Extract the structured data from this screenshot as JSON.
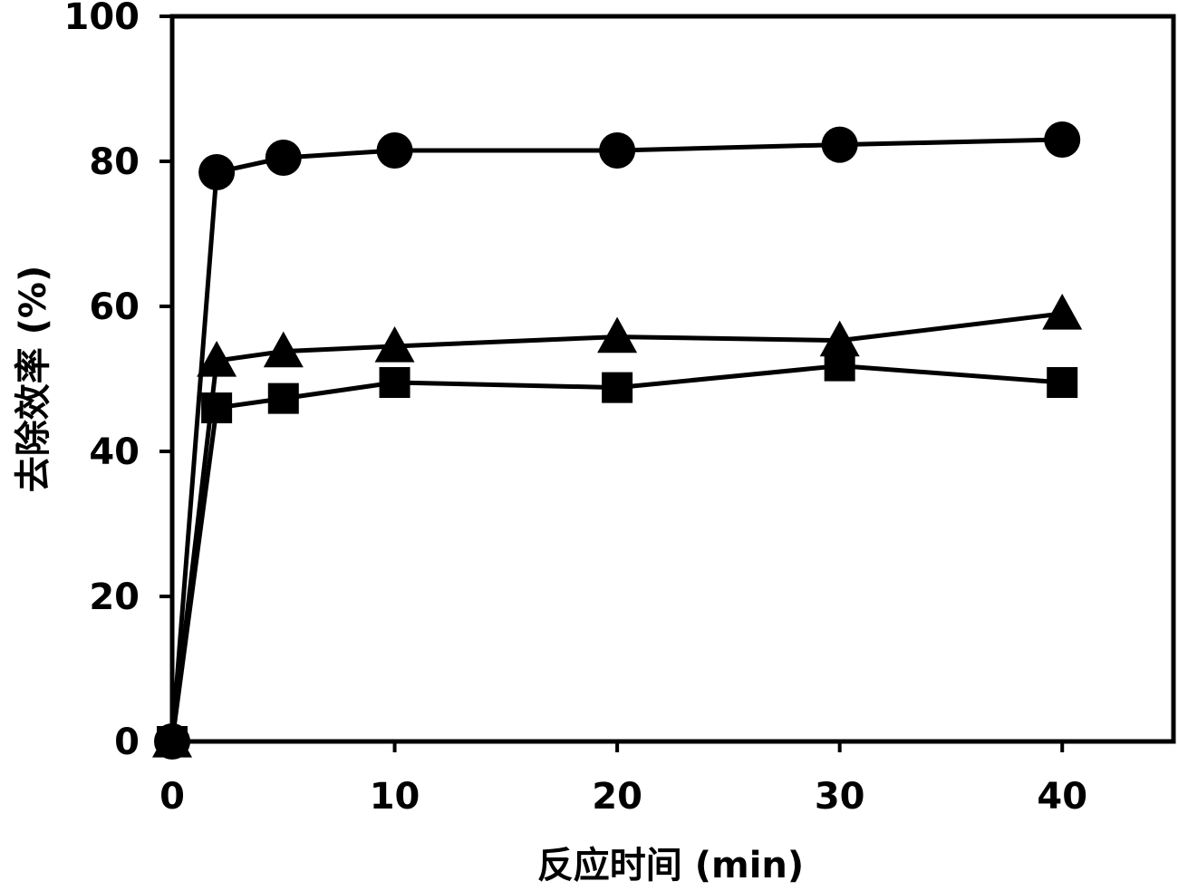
{
  "chart_data": {
    "type": "line",
    "xlabel": "反应时间 (min)",
    "ylabel": "去除效率 (%)",
    "xlim": [
      0,
      45
    ],
    "ylim": [
      0,
      100
    ],
    "x_ticks": [
      0,
      10,
      20,
      30,
      40
    ],
    "x_tick_labels": [
      "0",
      "10",
      "20",
      "30",
      "40"
    ],
    "y_ticks": [
      0,
      20,
      40,
      60,
      80,
      100
    ],
    "y_tick_labels": [
      "0",
      "20",
      "40",
      "60",
      "80",
      "100"
    ],
    "grid": false,
    "legend": "none",
    "series": [
      {
        "marker": "circle",
        "color": "#000000",
        "x": [
          0,
          2,
          5,
          10,
          20,
          30,
          40
        ],
        "y": [
          0,
          78.5,
          80.5,
          81.5,
          81.5,
          82.3,
          83
        ]
      },
      {
        "marker": "triangle",
        "color": "#000000",
        "x": [
          0,
          2,
          5,
          10,
          20,
          30,
          40
        ],
        "y": [
          0,
          52.5,
          53.8,
          54.5,
          55.8,
          55.3,
          59
        ]
      },
      {
        "marker": "square",
        "color": "#000000",
        "x": [
          0,
          2,
          5,
          10,
          20,
          30,
          40
        ],
        "y": [
          0,
          46,
          47.3,
          49.5,
          48.8,
          51.8,
          49.5
        ]
      }
    ]
  }
}
